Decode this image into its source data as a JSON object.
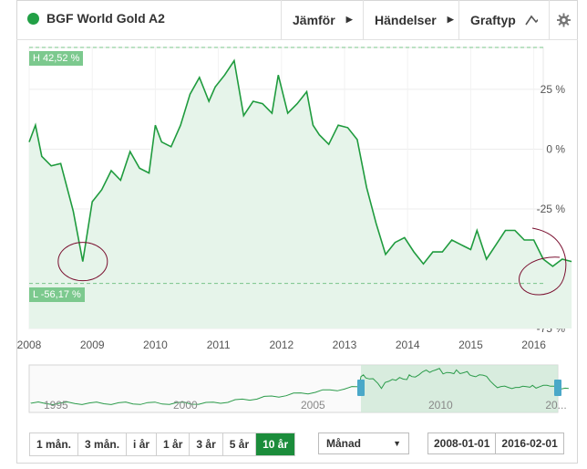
{
  "header": {
    "title": "BGF World Gold A2",
    "compare_label": "Jämför",
    "events_label": "Händelser",
    "charttype_label": "Graftyp"
  },
  "chart": {
    "high_label": "H 42,52 %",
    "low_label": "L -56,17 %",
    "x_ticks": [
      "2008",
      "2009",
      "2010",
      "2011",
      "2012",
      "2013",
      "2014",
      "2015",
      "2016"
    ],
    "y_ticks": [
      "25 %",
      "0 %",
      "-25 %",
      "-50 %",
      "-75 %"
    ]
  },
  "navigator": {
    "ticks": [
      "1995",
      "2000",
      "2005",
      "2010",
      "20..."
    ]
  },
  "controls": {
    "periods": [
      "1 mån.",
      "3 mån.",
      "i år",
      "1 år",
      "3 år",
      "5 år",
      "10 år"
    ],
    "active_period": "10 år",
    "interval": "Månad",
    "date_from": "2008-01-01",
    "date_to": "2016-02-01"
  },
  "colors": {
    "line": "#1f9b3e",
    "fill": "#e6f4ea",
    "accent": "#1b8c3b",
    "annotation": "#7a1030"
  },
  "chart_data": {
    "type": "line",
    "title": "BGF World Gold A2",
    "y_unit": "%",
    "ylim": [
      -75,
      42.52
    ],
    "x_range": [
      "2008-01",
      "2016-02"
    ],
    "high": 42.52,
    "low": -56.17,
    "series": [
      {
        "values": [
          [
            2008.0,
            3
          ],
          [
            2008.1,
            10
          ],
          [
            2008.2,
            -3
          ],
          [
            2008.35,
            -7
          ],
          [
            2008.5,
            -6
          ],
          [
            2008.7,
            -26
          ],
          [
            2008.85,
            -47
          ],
          [
            2009.0,
            -22
          ],
          [
            2009.15,
            -17
          ],
          [
            2009.3,
            -9
          ],
          [
            2009.45,
            -13
          ],
          [
            2009.6,
            -1
          ],
          [
            2009.75,
            -8
          ],
          [
            2009.9,
            -10
          ],
          [
            2010.0,
            10
          ],
          [
            2010.1,
            3
          ],
          [
            2010.25,
            1
          ],
          [
            2010.4,
            10
          ],
          [
            2010.55,
            23
          ],
          [
            2010.7,
            30
          ],
          [
            2010.85,
            20
          ],
          [
            2010.95,
            26
          ],
          [
            2011.1,
            31
          ],
          [
            2011.25,
            37
          ],
          [
            2011.4,
            14
          ],
          [
            2011.55,
            20
          ],
          [
            2011.7,
            19
          ],
          [
            2011.85,
            15
          ],
          [
            2011.95,
            31
          ],
          [
            2012.1,
            15
          ],
          [
            2012.25,
            19
          ],
          [
            2012.4,
            24
          ],
          [
            2012.5,
            10
          ],
          [
            2012.6,
            6
          ],
          [
            2012.75,
            2
          ],
          [
            2012.9,
            10
          ],
          [
            2013.05,
            9
          ],
          [
            2013.2,
            4
          ],
          [
            2013.35,
            -16
          ],
          [
            2013.5,
            -31
          ],
          [
            2013.65,
            -44
          ],
          [
            2013.8,
            -39
          ],
          [
            2013.95,
            -37
          ],
          [
            2014.1,
            -43
          ],
          [
            2014.25,
            -48
          ],
          [
            2014.4,
            -43
          ],
          [
            2014.55,
            -43
          ],
          [
            2014.7,
            -38
          ],
          [
            2014.85,
            -40
          ],
          [
            2015.0,
            -42
          ],
          [
            2015.1,
            -34
          ],
          [
            2015.25,
            -46
          ],
          [
            2015.4,
            -40
          ],
          [
            2015.55,
            -34
          ],
          [
            2015.7,
            -34
          ],
          [
            2015.85,
            -38
          ],
          [
            2016.0,
            -38
          ],
          [
            2016.15,
            -46
          ],
          [
            2016.3,
            -49
          ],
          [
            2016.45,
            -46
          ],
          [
            2016.6,
            -47
          ]
        ]
      }
    ]
  }
}
